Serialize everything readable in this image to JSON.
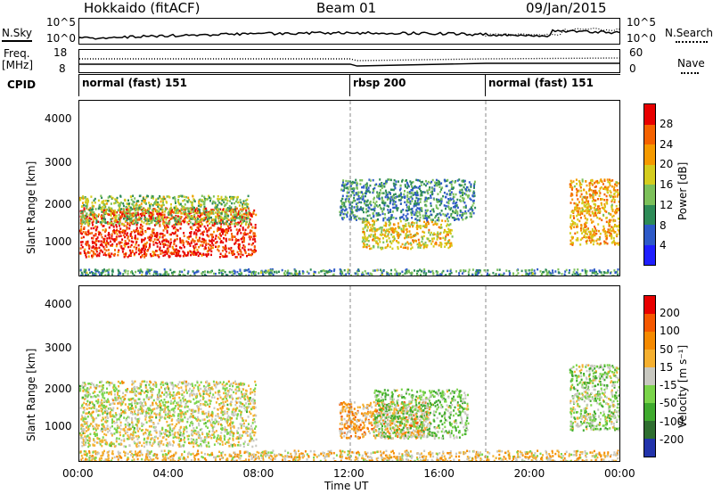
{
  "header": {
    "station": "Hokkaido (fitACF)",
    "beam": "Beam 01",
    "date": "09/Jan/2015"
  },
  "top_panels": {
    "nsky_label": "N.Sky",
    "nsky_ticks": [
      "10^5",
      "10^0"
    ],
    "nsearch_label": "N.Search",
    "nsearch_ticks": [
      "10^5",
      "10^0"
    ],
    "freq_label": "Freq.",
    "freq_unit": "[MHz]",
    "freq_ticks": [
      "18",
      "8"
    ],
    "nave_label": "Nave",
    "nave_ticks": [
      "60",
      "0"
    ],
    "cpid_label": "CPID",
    "modes": [
      {
        "label": "normal (fast) 151",
        "start_hour": 0
      },
      {
        "label": "rbsp 200",
        "start_hour": 12
      },
      {
        "label": "normal (fast) 151",
        "start_hour": 18
      }
    ]
  },
  "power_panel": {
    "ylabel": "Slant Range [km]",
    "yticks": [
      "4000",
      "3000",
      "2000",
      "1000"
    ],
    "colorbar_label": "Power [dB]",
    "colorbar_ticks": [
      "28",
      "24",
      "20",
      "16",
      "12",
      "8",
      "4"
    ],
    "colors": [
      "#1f1fff",
      "#2e5ac8",
      "#2e8b57",
      "#7cc05a",
      "#d4cc1e",
      "#f59a00",
      "#f56200",
      "#e80000"
    ]
  },
  "velocity_panel": {
    "ylabel": "Slant Range [km]",
    "yticks": [
      "4000",
      "3000",
      "2000",
      "1000"
    ],
    "colorbar_label": "Velocity [m s⁻¹]",
    "colorbar_ticks": [
      "200",
      "100",
      "50",
      "15",
      "-15",
      "-50",
      "-100",
      "-200"
    ],
    "colors": [
      "#2233aa",
      "#2f6e30",
      "#3faa2e",
      "#7ad44a",
      "#c8c8c0",
      "#f5b030",
      "#f58a00",
      "#f55800",
      "#e80000"
    ]
  },
  "xaxis": {
    "label": "Time UT",
    "ticks": [
      "00:00",
      "04:00",
      "08:00",
      "12:00",
      "16:00",
      "20:00",
      "00:00"
    ]
  },
  "chart_data": {
    "type": "heatmap",
    "title": "Hokkaido (fitACF) Beam 01 09/Jan/2015",
    "xlabel": "Time UT",
    "ylabel": "Slant Range [km]",
    "xlim": [
      0,
      24
    ],
    "ylim": [
      180,
      4500
    ],
    "power": {
      "units": "dB",
      "range": [
        0,
        30
      ],
      "regions": [
        {
          "name": "",
          "t": [
            0,
            7.8
          ],
          "r": [
            700,
            1900
          ],
          "value": 27
        },
        {
          "name": "",
          "t": [
            0,
            7.5
          ],
          "r": [
            1500,
            2200
          ],
          "value": 14
        },
        {
          "name": "",
          "t": [
            12.5,
            16.5
          ],
          "r": [
            900,
            1600
          ],
          "value": 18
        },
        {
          "name": "",
          "t": [
            11.5,
            17.5
          ],
          "r": [
            1600,
            2600
          ],
          "value": 9
        },
        {
          "name": "",
          "t": [
            21.7,
            24
          ],
          "r": [
            1000,
            2600
          ],
          "value": 20
        },
        {
          "name": "",
          "t": [
            0,
            24
          ],
          "r": [
            200,
            400
          ],
          "value": 10
        }
      ]
    },
    "velocity": {
      "units": "m s^-1",
      "range": [
        -200,
        200
      ],
      "regions": [
        {
          "name": "",
          "t": [
            0,
            7.8
          ],
          "r": [
            600,
            2200
          ],
          "value": 0
        },
        {
          "name": "",
          "t": [
            11.5,
            15.5
          ],
          "r": [
            800,
            1700
          ],
          "value": -60
        },
        {
          "name": "",
          "t": [
            13,
            17.2
          ],
          "r": [
            800,
            2000
          ],
          "value": 40
        },
        {
          "name": "",
          "t": [
            21.7,
            24
          ],
          "r": [
            1000,
            2600
          ],
          "value": 30
        },
        {
          "name": "",
          "t": [
            0,
            24
          ],
          "r": [
            200,
            500
          ],
          "value": -30
        }
      ]
    }
  }
}
